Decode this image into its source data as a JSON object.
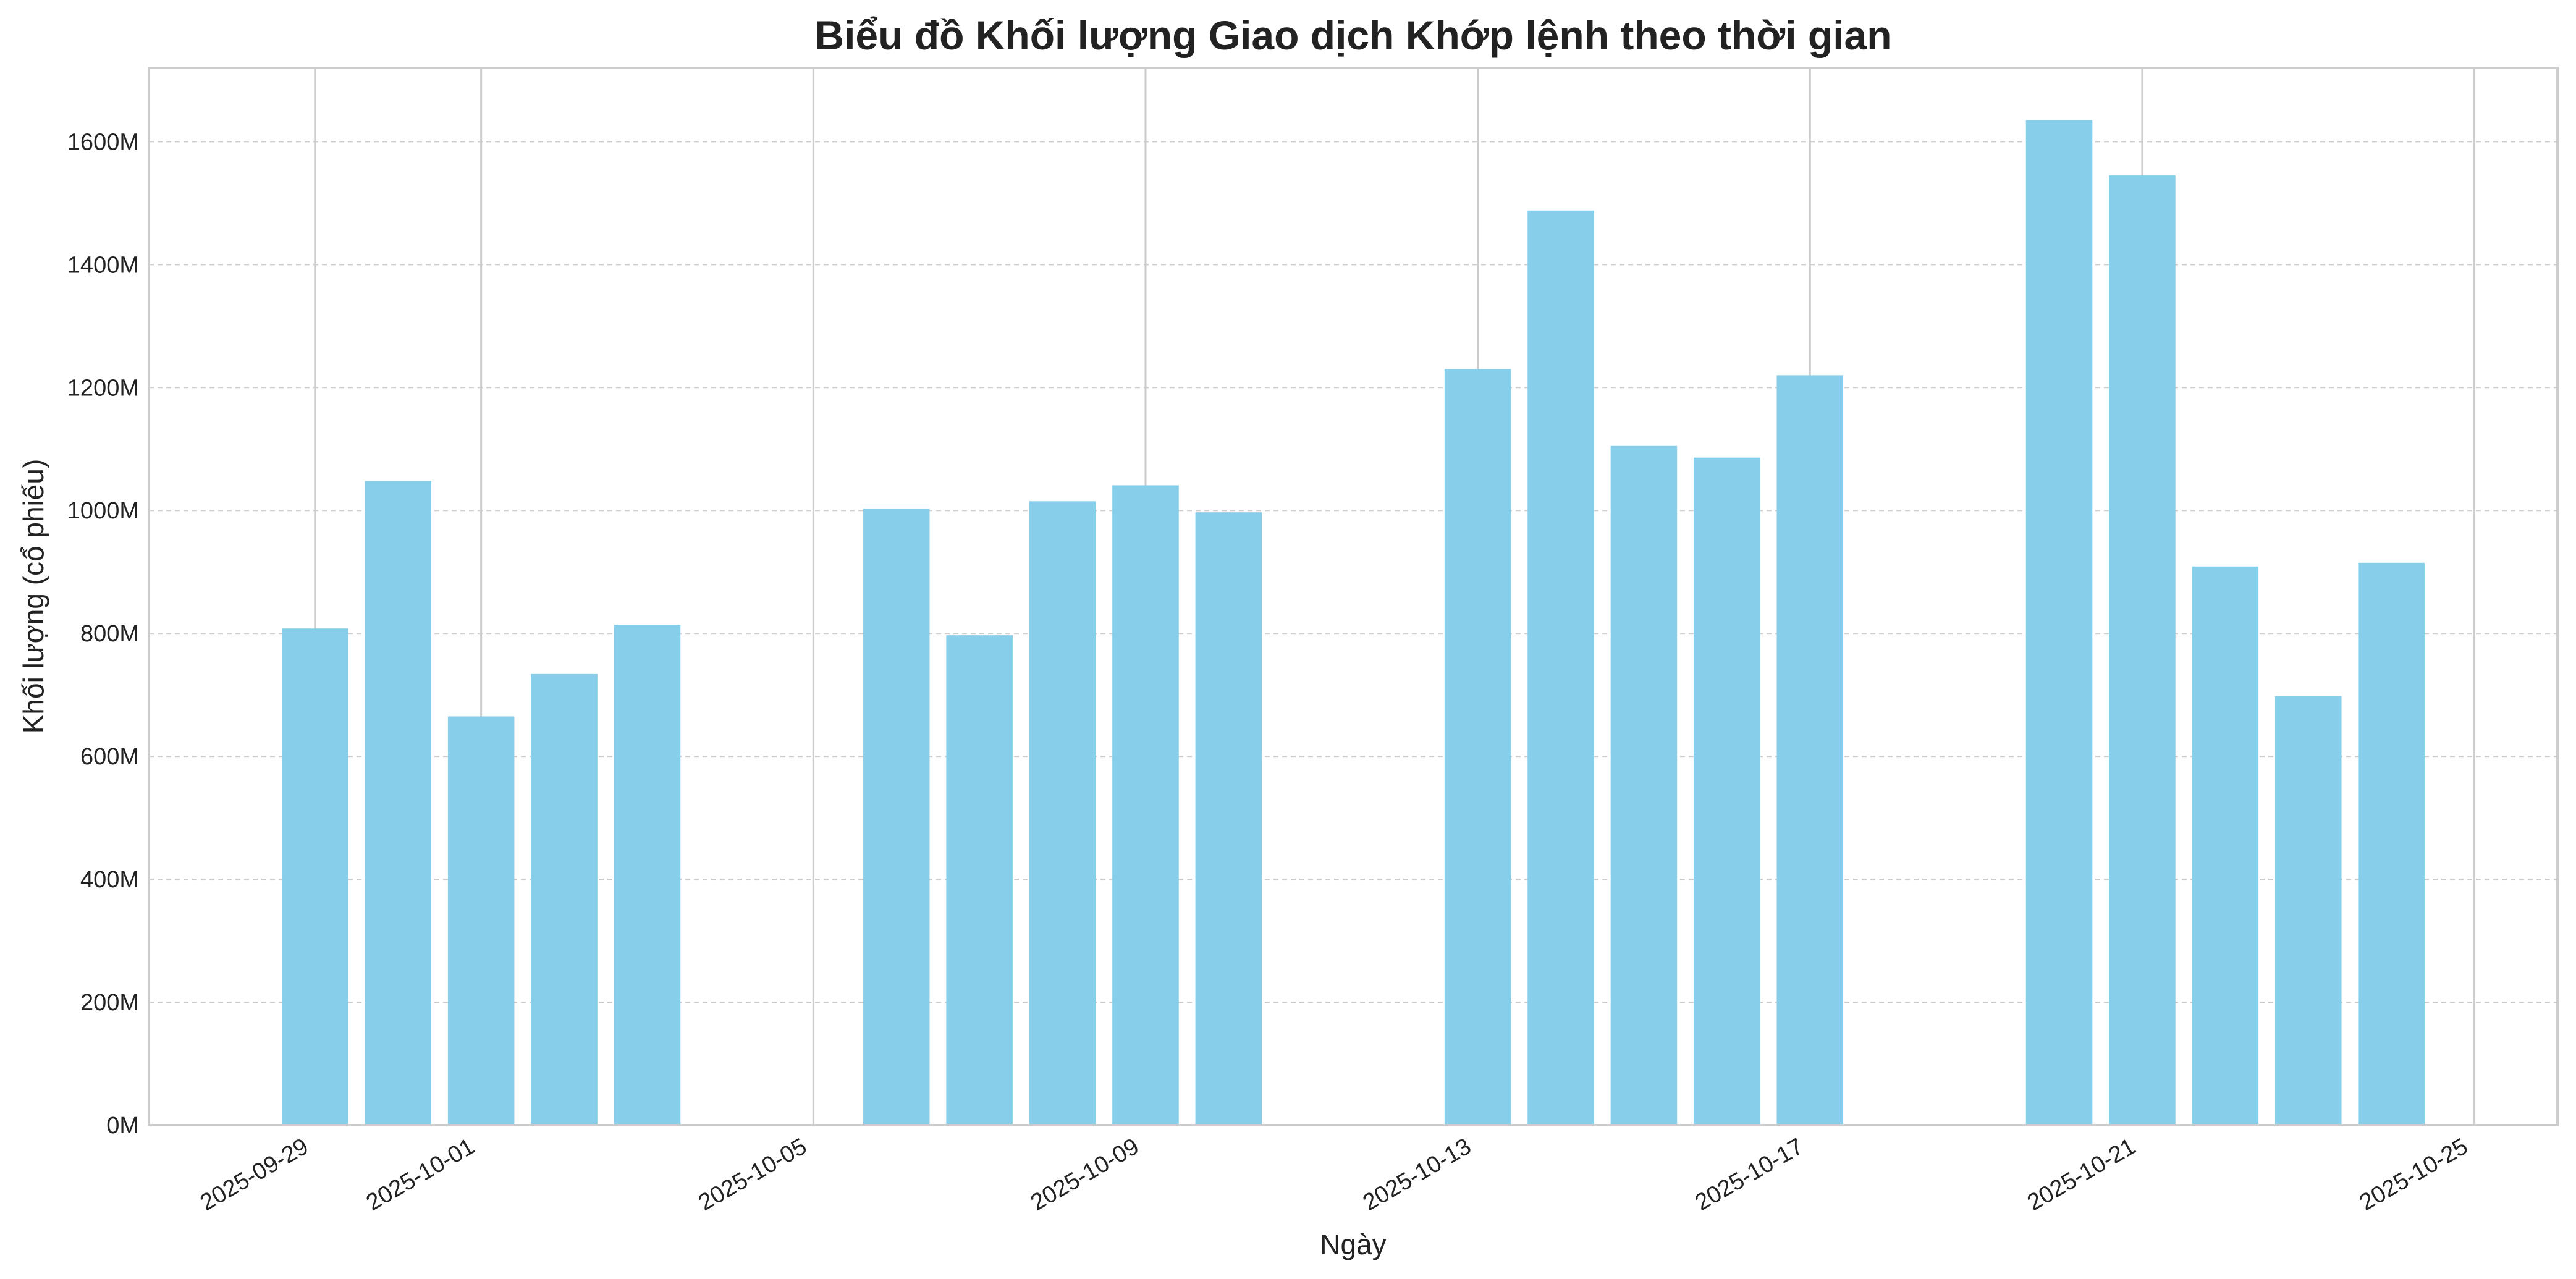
{
  "chart_data": {
    "type": "bar",
    "title": "Biểu đồ Khối lượng Giao dịch Khớp lệnh theo thời gian",
    "xlabel": "Ngày",
    "ylabel": "Khối lượng (cổ phiếu)",
    "x_axis": {
      "kind": "date",
      "range": [
        "2025-09-27",
        "2025-10-26"
      ],
      "tick_labels": [
        "2025-09-29",
        "2025-10-01",
        "2025-10-05",
        "2025-10-09",
        "2025-10-13",
        "2025-10-17",
        "2025-10-21",
        "2025-10-25"
      ]
    },
    "y_axis": {
      "ylim": [
        0,
        1720000000
      ],
      "ticks": [
        0,
        200000000,
        400000000,
        600000000,
        800000000,
        1000000000,
        1200000000,
        1400000000,
        1600000000
      ],
      "tick_labels": [
        "0M",
        "200M",
        "400M",
        "600M",
        "800M",
        "1000M",
        "1200M",
        "1400M",
        "1600M"
      ]
    },
    "grid": {
      "x": true,
      "y": true,
      "y_style": "dashed"
    },
    "bar_color": "#87CEEB",
    "x": [
      "2025-09-29",
      "2025-09-30",
      "2025-10-01",
      "2025-10-02",
      "2025-10-03",
      "2025-10-06",
      "2025-10-07",
      "2025-10-08",
      "2025-10-09",
      "2025-10-10",
      "2025-10-13",
      "2025-10-14",
      "2025-10-15",
      "2025-10-16",
      "2025-10-17",
      "2025-10-20",
      "2025-10-21",
      "2025-10-22",
      "2025-10-23",
      "2025-10-24"
    ],
    "values": [
      808000000,
      1048000000,
      665000000,
      734000000,
      814000000,
      1003000000,
      797000000,
      1015000000,
      1041000000,
      997000000,
      1230000000,
      1488000000,
      1105000000,
      1086000000,
      1220000000,
      1635000000,
      1545000000,
      909000000,
      698000000,
      915000000
    ]
  }
}
